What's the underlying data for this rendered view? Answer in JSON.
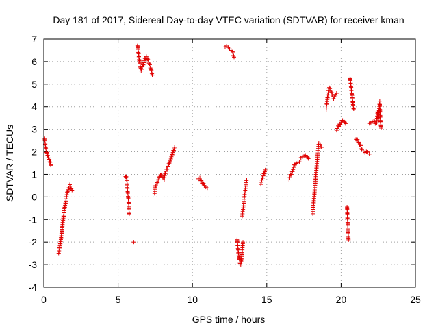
{
  "chart_data": {
    "type": "scatter",
    "title": "Day 181 of 2017, Sidereal Day-to-day VTEC variation (SDTVAR) for receiver kman",
    "xlabel": "GPS time / hours",
    "ylabel": "SDTVAR / TECUs",
    "xlim": [
      0,
      25
    ],
    "ylim": [
      -4,
      7
    ],
    "xticks": [
      "0",
      "5",
      "10",
      "15",
      "20",
      "25"
    ],
    "yticks": [
      "-4",
      "-3",
      "-2",
      "-1",
      "0",
      "1",
      "2",
      "3",
      "4",
      "5",
      "6",
      "7"
    ],
    "grid": true,
    "marker": "plus",
    "marker_color": "#e00000",
    "series": [
      {
        "segments": [
          [
            [
              0.05,
              2.65
            ],
            [
              0.1,
              2.3
            ],
            [
              0.15,
              2.1
            ],
            [
              0.2,
              1.95
            ],
            [
              0.25,
              1.85
            ],
            [
              0.3,
              1.75
            ],
            [
              0.35,
              1.7
            ],
            [
              0.4,
              1.6
            ],
            [
              0.45,
              1.5
            ],
            [
              0.48,
              1.4
            ]
          ],
          [
            [
              1.0,
              -2.45
            ],
            [
              1.05,
              -2.3
            ],
            [
              1.1,
              -2.1
            ],
            [
              1.15,
              -1.9
            ],
            [
              1.2,
              -1.6
            ],
            [
              1.25,
              -1.3
            ],
            [
              1.3,
              -1.0
            ],
            [
              1.35,
              -0.75
            ],
            [
              1.4,
              -0.5
            ],
            [
              1.45,
              -0.3
            ],
            [
              1.5,
              -0.1
            ],
            [
              1.55,
              0.1
            ],
            [
              1.6,
              0.25
            ],
            [
              1.65,
              0.35
            ],
            [
              1.7,
              0.45
            ],
            [
              1.75,
              0.5
            ],
            [
              1.8,
              0.45
            ],
            [
              1.85,
              0.35
            ],
            [
              1.9,
              0.3
            ]
          ],
          [
            [
              5.5,
              0.95
            ],
            [
              5.55,
              0.85
            ],
            [
              5.6,
              0.7
            ],
            [
              5.62,
              0.4
            ],
            [
              5.65,
              0.2
            ],
            [
              5.7,
              -0.2
            ],
            [
              5.72,
              -0.45
            ],
            [
              5.75,
              -0.75
            ]
          ],
          [
            [
              6.05,
              -2.0
            ]
          ],
          [
            [
              6.3,
              6.75
            ],
            [
              6.35,
              6.5
            ],
            [
              6.4,
              6.2
            ],
            [
              6.45,
              5.95
            ],
            [
              6.5,
              5.75
            ],
            [
              6.55,
              5.6
            ],
            [
              6.6,
              5.7
            ],
            [
              6.7,
              5.9
            ],
            [
              6.8,
              6.1
            ],
            [
              6.9,
              6.2
            ],
            [
              7.0,
              6.1
            ],
            [
              7.1,
              5.9
            ],
            [
              7.2,
              5.7
            ],
            [
              7.3,
              5.4
            ]
          ],
          [
            [
              7.45,
              0.2
            ],
            [
              7.5,
              0.45
            ],
            [
              7.6,
              0.6
            ],
            [
              7.7,
              0.75
            ],
            [
              7.8,
              0.9
            ],
            [
              7.9,
              1.0
            ],
            [
              8.0,
              0.9
            ],
            [
              8.1,
              0.8
            ],
            [
              8.15,
              1.0
            ],
            [
              8.25,
              1.2
            ],
            [
              8.35,
              1.35
            ],
            [
              8.45,
              1.5
            ],
            [
              8.55,
              1.7
            ],
            [
              8.65,
              1.9
            ],
            [
              8.75,
              2.1
            ],
            [
              8.8,
              2.2
            ]
          ],
          [
            [
              10.4,
              0.85
            ],
            [
              10.5,
              0.8
            ],
            [
              10.6,
              0.7
            ],
            [
              10.7,
              0.6
            ],
            [
              10.8,
              0.5
            ],
            [
              10.9,
              0.45
            ],
            [
              11.0,
              0.4
            ]
          ],
          [
            [
              12.2,
              6.7
            ],
            [
              12.3,
              6.65
            ],
            [
              12.4,
              6.6
            ],
            [
              12.5,
              6.55
            ],
            [
              12.6,
              6.5
            ],
            [
              12.7,
              6.45
            ],
            [
              12.75,
              6.3
            ],
            [
              12.8,
              6.2
            ]
          ],
          [
            [
              13.0,
              -1.85
            ],
            [
              13.05,
              -2.2
            ],
            [
              13.1,
              -2.5
            ],
            [
              13.15,
              -2.75
            ],
            [
              13.2,
              -2.95
            ],
            [
              13.25,
              -3.0
            ],
            [
              13.3,
              -2.7
            ],
            [
              13.35,
              -2.4
            ],
            [
              13.4,
              -2.0
            ]
          ],
          [
            [
              13.35,
              -0.8
            ],
            [
              13.4,
              -0.6
            ],
            [
              13.45,
              -0.3
            ],
            [
              13.5,
              0.0
            ],
            [
              13.55,
              0.3
            ],
            [
              13.6,
              0.55
            ],
            [
              13.65,
              0.75
            ]
          ],
          [
            [
              14.6,
              0.6
            ],
            [
              14.7,
              0.8
            ],
            [
              14.8,
              1.0
            ],
            [
              14.9,
              1.2
            ]
          ],
          [
            [
              16.5,
              0.8
            ],
            [
              16.6,
              0.95
            ],
            [
              16.7,
              1.1
            ],
            [
              16.8,
              1.3
            ],
            [
              16.9,
              1.45
            ],
            [
              17.0,
              1.5
            ],
            [
              17.1,
              1.55
            ],
            [
              17.2,
              1.6
            ],
            [
              17.3,
              1.7
            ],
            [
              17.4,
              1.75
            ],
            [
              17.5,
              1.8
            ],
            [
              17.6,
              1.85
            ],
            [
              17.7,
              1.8
            ],
            [
              17.8,
              1.7
            ]
          ],
          [
            [
              18.1,
              -0.7
            ],
            [
              18.15,
              -0.3
            ],
            [
              18.2,
              0.1
            ],
            [
              18.25,
              0.5
            ],
            [
              18.3,
              0.9
            ],
            [
              18.35,
              1.3
            ],
            [
              18.4,
              1.7
            ],
            [
              18.45,
              2.1
            ],
            [
              18.5,
              2.35
            ],
            [
              18.6,
              2.3
            ],
            [
              18.7,
              2.2
            ]
          ],
          [
            [
              19.0,
              3.9
            ],
            [
              19.05,
              4.2
            ],
            [
              19.1,
              4.5
            ],
            [
              19.15,
              4.7
            ],
            [
              19.2,
              4.85
            ],
            [
              19.3,
              4.7
            ],
            [
              19.4,
              4.55
            ],
            [
              19.5,
              4.4
            ],
            [
              19.6,
              4.5
            ],
            [
              19.7,
              4.6
            ]
          ],
          [
            [
              19.7,
              3.0
            ],
            [
              19.8,
              3.1
            ],
            [
              19.9,
              3.2
            ],
            [
              20.0,
              3.3
            ],
            [
              20.1,
              3.4
            ],
            [
              20.2,
              3.35
            ],
            [
              20.3,
              3.25
            ]
          ],
          [
            [
              20.4,
              -0.4
            ],
            [
              20.42,
              -0.8
            ],
            [
              20.45,
              -1.3
            ],
            [
              20.48,
              -1.6
            ],
            [
              20.5,
              -1.9
            ]
          ],
          [
            [
              20.6,
              5.3
            ],
            [
              20.65,
              5.0
            ],
            [
              20.7,
              4.7
            ],
            [
              20.75,
              4.4
            ],
            [
              20.8,
              4.1
            ],
            [
              20.85,
              3.9
            ]
          ],
          [
            [
              21.0,
              2.6
            ],
            [
              21.1,
              2.5
            ],
            [
              21.2,
              2.4
            ],
            [
              21.3,
              2.3
            ],
            [
              21.4,
              2.1
            ],
            [
              21.5,
              2.05
            ],
            [
              21.6,
              2.0
            ],
            [
              21.7,
              2.05
            ],
            [
              21.8,
              1.95
            ],
            [
              21.9,
              1.9
            ]
          ],
          [
            [
              21.9,
              3.3
            ],
            [
              22.0,
              3.25
            ],
            [
              22.1,
              3.3
            ],
            [
              22.2,
              3.35
            ],
            [
              22.3,
              3.25
            ],
            [
              22.4,
              3.3
            ],
            [
              22.45,
              3.8
            ],
            [
              22.5,
              3.4
            ],
            [
              22.6,
              4.2
            ],
            [
              22.65,
              3.3
            ],
            [
              22.7,
              3.05
            ]
          ]
        ]
      }
    ]
  }
}
